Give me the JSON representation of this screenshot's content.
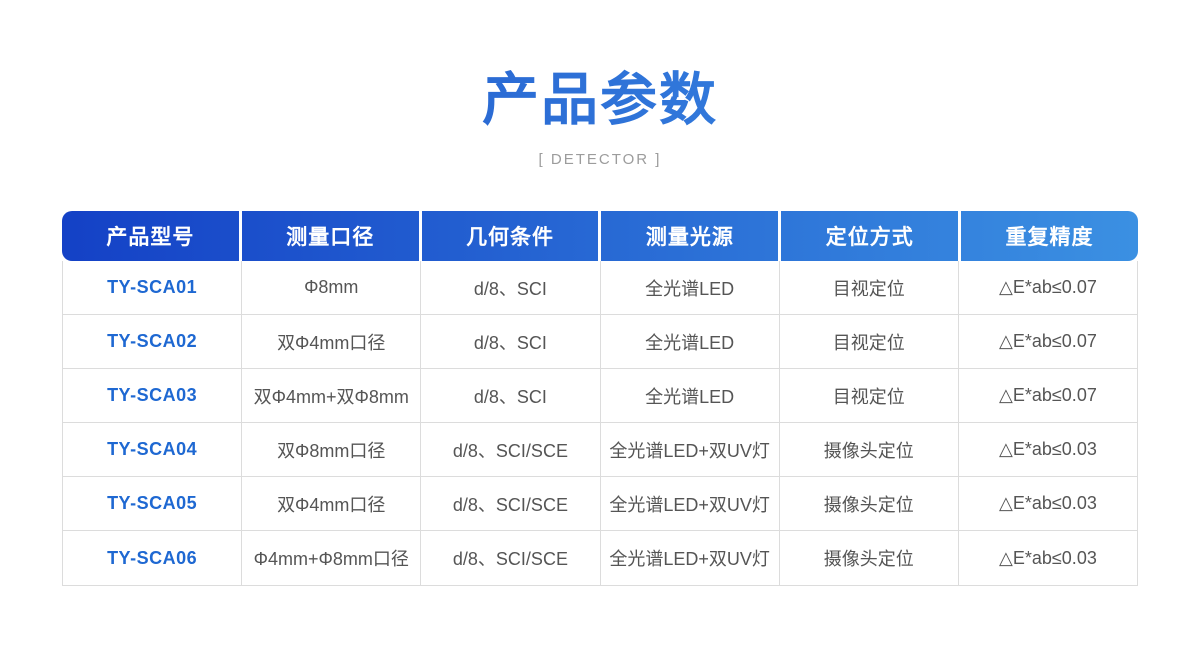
{
  "header": {
    "title": "产品参数",
    "subtitle": "[ DETECTOR ]"
  },
  "table": {
    "columns": [
      "产品型号",
      "测量口径",
      "几何条件",
      "测量光源",
      "定位方式",
      "重复精度"
    ],
    "rows": [
      {
        "model": "TY-SCA01",
        "aperture": "Φ8mm",
        "geometry": "d/8、SCI",
        "light": "全光谱LED",
        "positioning": "目视定位",
        "repeatability": "△E*ab≤0.07"
      },
      {
        "model": "TY-SCA02",
        "aperture": "双Φ4mm口径",
        "geometry": "d/8、SCI",
        "light": "全光谱LED",
        "positioning": "目视定位",
        "repeatability": "△E*ab≤0.07"
      },
      {
        "model": "TY-SCA03",
        "aperture": "双Φ4mm+双Φ8mm",
        "geometry": "d/8、SCI",
        "light": "全光谱LED",
        "positioning": "目视定位",
        "repeatability": "△E*ab≤0.07"
      },
      {
        "model": "TY-SCA04",
        "aperture": "双Φ8mm口径",
        "geometry": "d/8、SCI/SCE",
        "light": "全光谱LED+双UV灯",
        "positioning": "摄像头定位",
        "repeatability": "△E*ab≤0.03"
      },
      {
        "model": "TY-SCA05",
        "aperture": "双Φ4mm口径",
        "geometry": "d/8、SCI/SCE",
        "light": "全光谱LED+双UV灯",
        "positioning": "摄像头定位",
        "repeatability": "△E*ab≤0.03"
      },
      {
        "model": "TY-SCA06",
        "aperture": "Φ4mm+Φ8mm口径",
        "geometry": "d/8、SCI/SCE",
        "light": "全光谱LED+双UV灯",
        "positioning": "摄像头定位",
        "repeatability": "△E*ab≤0.03"
      }
    ]
  },
  "colors": {
    "title_gradient_start": "#1d50c7",
    "title_gradient_end": "#3f93e8",
    "header_gradient_start": "#1441c6",
    "header_gradient_end": "#3b90e2",
    "header_text": "#ffffff",
    "model_text": "#1e68d2",
    "body_text": "#555555",
    "row_border": "#dcdcdc",
    "subtitle_text": "#9c9c9c",
    "background": "#ffffff"
  }
}
